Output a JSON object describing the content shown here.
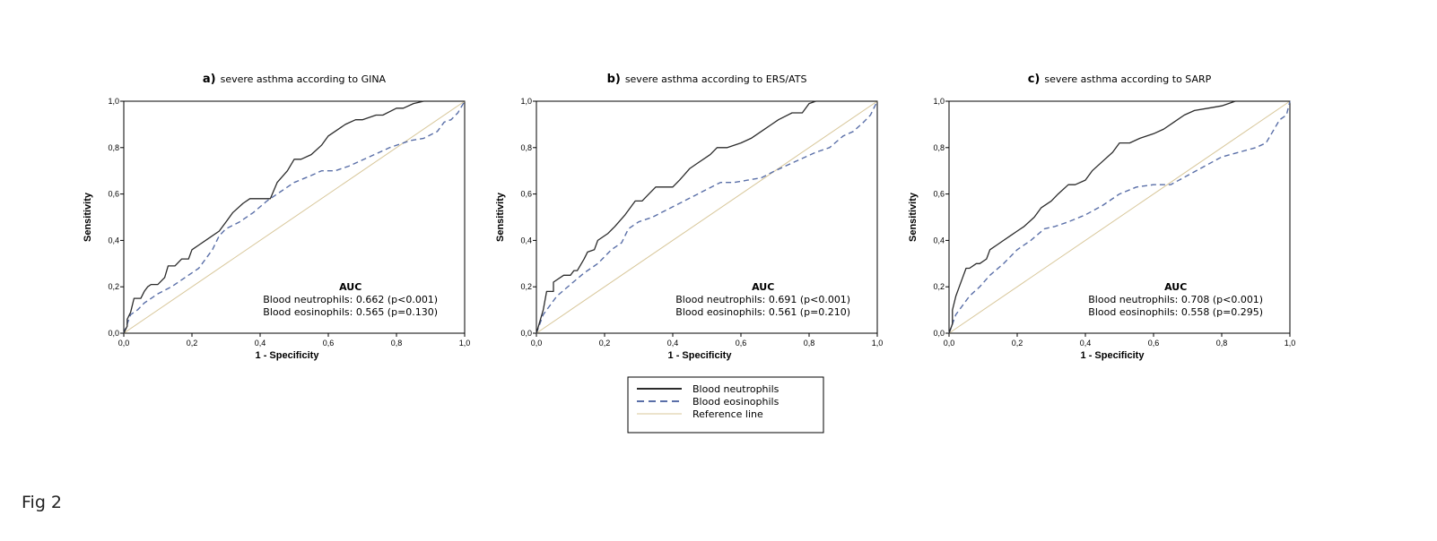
{
  "figure_caption": "Fig 2",
  "colors": {
    "neutrophils": "#2b2b2b",
    "eosinophils": "#5a6fa8",
    "reference": "#d8c79a"
  },
  "legend": {
    "entries": [
      "Blood neutrophils",
      "Blood eosinophils",
      "Reference line"
    ],
    "placement": "bottom-center"
  },
  "chart_data": [
    {
      "type": "line",
      "panel_letter": "a)",
      "title": "severe asthma according to GINA",
      "xlabel": "1 - Specificity",
      "ylabel": "Sensitivity",
      "xlim": [
        0,
        1
      ],
      "ylim": [
        0,
        1
      ],
      "x_ticks": [
        "0,0",
        "0,2",
        "0,4",
        "0,6",
        "0,8",
        "1,0"
      ],
      "y_ticks": [
        "0,0",
        "0,2",
        "0,4",
        "0,6",
        "0,8",
        "1,0"
      ],
      "auc_title": "AUC",
      "auc_lines": [
        "Blood neutrophils: 0.662 (p<0.001)",
        "Blood eosinophils: 0.565 (p=0.130)"
      ],
      "series": [
        {
          "name": "Blood neutrophils",
          "style": "solid",
          "x": [
            0,
            0.01,
            0.01,
            0.02,
            0.03,
            0.05,
            0.06,
            0.07,
            0.08,
            0.1,
            0.12,
            0.13,
            0.15,
            0.17,
            0.19,
            0.2,
            0.22,
            0.25,
            0.28,
            0.3,
            0.32,
            0.35,
            0.37,
            0.4,
            0.43,
            0.45,
            0.48,
            0.5,
            0.52,
            0.55,
            0.58,
            0.6,
            0.63,
            0.65,
            0.68,
            0.7,
            0.74,
            0.76,
            0.8,
            0.82,
            0.85,
            0.88,
            0.92,
            1
          ],
          "y": [
            0,
            0.03,
            0.06,
            0.09,
            0.15,
            0.15,
            0.18,
            0.2,
            0.21,
            0.21,
            0.24,
            0.29,
            0.29,
            0.32,
            0.32,
            0.36,
            0.38,
            0.41,
            0.44,
            0.48,
            0.52,
            0.56,
            0.58,
            0.58,
            0.58,
            0.65,
            0.7,
            0.75,
            0.75,
            0.77,
            0.81,
            0.85,
            0.88,
            0.9,
            0.92,
            0.92,
            0.94,
            0.94,
            0.97,
            0.97,
            0.99,
            1,
            1,
            1
          ]
        },
        {
          "name": "Blood eosinophils",
          "style": "dashed",
          "x": [
            0,
            0.01,
            0.02,
            0.04,
            0.06,
            0.1,
            0.14,
            0.18,
            0.22,
            0.26,
            0.28,
            0.3,
            0.34,
            0.38,
            0.42,
            0.46,
            0.5,
            0.55,
            0.58,
            0.62,
            0.66,
            0.72,
            0.78,
            0.84,
            0.88,
            0.92,
            0.94,
            0.96,
            0.98,
            1
          ],
          "y": [
            0,
            0.04,
            0.08,
            0.1,
            0.13,
            0.17,
            0.2,
            0.24,
            0.28,
            0.36,
            0.42,
            0.45,
            0.48,
            0.52,
            0.57,
            0.61,
            0.65,
            0.68,
            0.7,
            0.7,
            0.72,
            0.76,
            0.8,
            0.83,
            0.84,
            0.87,
            0.91,
            0.92,
            0.95,
            1
          ]
        },
        {
          "name": "Reference line",
          "style": "reference",
          "x": [
            0,
            1
          ],
          "y": [
            0,
            1
          ]
        }
      ]
    },
    {
      "type": "line",
      "panel_letter": "b)",
      "title": "severe asthma according to ERS/ATS",
      "xlabel": "1 - Specificity",
      "ylabel": "Sensitivity",
      "xlim": [
        0,
        1
      ],
      "ylim": [
        0,
        1
      ],
      "x_ticks": [
        "0,0",
        "0,2",
        "0,4",
        "0,6",
        "0,8",
        "1,0"
      ],
      "y_ticks": [
        "0,0",
        "0,2",
        "0,4",
        "0,6",
        "0,8",
        "1,0"
      ],
      "auc_title": "AUC",
      "auc_lines": [
        "Blood neutrophils: 0.691 (p<0.001)",
        "Blood eosinophils: 0.561 (p=0.210)"
      ],
      "series": [
        {
          "name": "Blood neutrophils",
          "style": "solid",
          "x": [
            0,
            0.01,
            0.02,
            0.03,
            0.05,
            0.05,
            0.08,
            0.1,
            0.11,
            0.12,
            0.14,
            0.15,
            0.17,
            0.18,
            0.21,
            0.23,
            0.26,
            0.29,
            0.31,
            0.33,
            0.35,
            0.37,
            0.4,
            0.42,
            0.45,
            0.47,
            0.51,
            0.53,
            0.56,
            0.6,
            0.63,
            0.67,
            0.69,
            0.71,
            0.75,
            0.78,
            0.8,
            0.82,
            0.85,
            1
          ],
          "y": [
            0,
            0.05,
            0.1,
            0.18,
            0.18,
            0.22,
            0.25,
            0.25,
            0.27,
            0.27,
            0.32,
            0.35,
            0.36,
            0.4,
            0.43,
            0.46,
            0.51,
            0.57,
            0.57,
            0.6,
            0.63,
            0.63,
            0.63,
            0.66,
            0.71,
            0.73,
            0.77,
            0.8,
            0.8,
            0.82,
            0.84,
            0.88,
            0.9,
            0.92,
            0.95,
            0.95,
            0.99,
            1,
            1,
            1
          ]
        },
        {
          "name": "Blood eosinophils",
          "style": "dashed",
          "x": [
            0,
            0.01,
            0.02,
            0.04,
            0.06,
            0.1,
            0.14,
            0.18,
            0.22,
            0.25,
            0.27,
            0.3,
            0.34,
            0.38,
            0.42,
            0.46,
            0.5,
            0.54,
            0.58,
            0.62,
            0.66,
            0.7,
            0.76,
            0.82,
            0.86,
            0.9,
            0.93,
            0.96,
            0.98,
            1
          ],
          "y": [
            0,
            0.04,
            0.08,
            0.12,
            0.16,
            0.21,
            0.26,
            0.3,
            0.36,
            0.39,
            0.45,
            0.48,
            0.5,
            0.53,
            0.56,
            0.59,
            0.62,
            0.65,
            0.65,
            0.66,
            0.67,
            0.7,
            0.74,
            0.78,
            0.8,
            0.85,
            0.87,
            0.91,
            0.94,
            1
          ]
        },
        {
          "name": "Reference line",
          "style": "reference",
          "x": [
            0,
            1
          ],
          "y": [
            0,
            1
          ]
        }
      ]
    },
    {
      "type": "line",
      "panel_letter": "c)",
      "title": "severe asthma according to SARP",
      "xlabel": "1 - Specificity",
      "ylabel": "Sensitivity",
      "xlim": [
        0,
        1
      ],
      "ylim": [
        0,
        1
      ],
      "x_ticks": [
        "0,0",
        "0,2",
        "0,4",
        "0,6",
        "0,8",
        "1,0"
      ],
      "y_ticks": [
        "0,0",
        "0,2",
        "0,4",
        "0,6",
        "0,8",
        "1,0"
      ],
      "auc_title": "AUC",
      "auc_lines": [
        "Blood neutrophils: 0.708 (p<0.001)",
        "Blood eosinophils: 0.558 (p=0.295)"
      ],
      "series": [
        {
          "name": "Blood neutrophils",
          "style": "solid",
          "x": [
            0,
            0.01,
            0.01,
            0.02,
            0.03,
            0.04,
            0.05,
            0.06,
            0.08,
            0.09,
            0.11,
            0.12,
            0.14,
            0.16,
            0.18,
            0.2,
            0.22,
            0.25,
            0.27,
            0.3,
            0.32,
            0.35,
            0.37,
            0.4,
            0.42,
            0.45,
            0.48,
            0.5,
            0.53,
            0.56,
            0.6,
            0.63,
            0.66,
            0.69,
            0.72,
            0.76,
            0.8,
            0.84,
            1
          ],
          "y": [
            0,
            0.04,
            0.1,
            0.16,
            0.2,
            0.24,
            0.28,
            0.28,
            0.3,
            0.3,
            0.32,
            0.36,
            0.38,
            0.4,
            0.42,
            0.44,
            0.46,
            0.5,
            0.54,
            0.57,
            0.6,
            0.64,
            0.64,
            0.66,
            0.7,
            0.74,
            0.78,
            0.82,
            0.82,
            0.84,
            0.86,
            0.88,
            0.91,
            0.94,
            0.96,
            0.97,
            0.98,
            1,
            1
          ]
        },
        {
          "name": "Blood eosinophils",
          "style": "dashed",
          "x": [
            0,
            0.01,
            0.02,
            0.04,
            0.06,
            0.09,
            0.12,
            0.16,
            0.2,
            0.24,
            0.28,
            0.31,
            0.35,
            0.4,
            0.45,
            0.5,
            0.55,
            0.6,
            0.65,
            0.7,
            0.75,
            0.8,
            0.85,
            0.9,
            0.93,
            0.95,
            0.97,
            0.99,
            1
          ],
          "y": [
            0,
            0.04,
            0.08,
            0.12,
            0.16,
            0.2,
            0.25,
            0.3,
            0.36,
            0.4,
            0.45,
            0.46,
            0.48,
            0.51,
            0.55,
            0.6,
            0.63,
            0.64,
            0.64,
            0.68,
            0.72,
            0.76,
            0.78,
            0.8,
            0.82,
            0.87,
            0.92,
            0.94,
            1
          ]
        },
        {
          "name": "Reference line",
          "style": "reference",
          "x": [
            0,
            1
          ],
          "y": [
            0,
            1
          ]
        }
      ]
    }
  ]
}
